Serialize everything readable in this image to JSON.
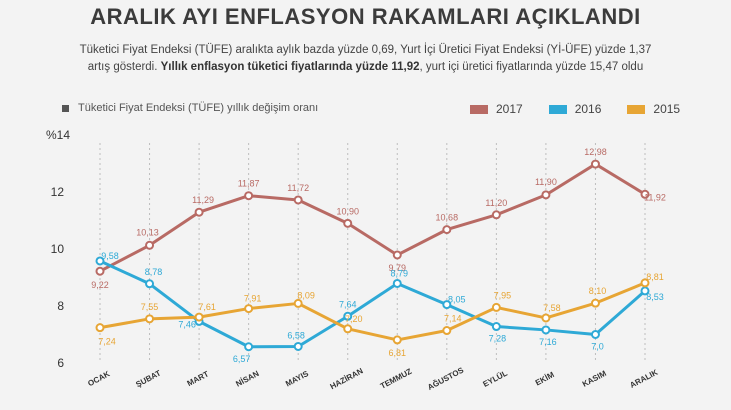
{
  "header": {
    "title": "ARALIK AYI ENFLASYON RAKAMLARI AÇIKLANDI",
    "subtitle_line1": "Tüketici Fiyat Endeksi (TÜFE) aralıkta aylık bazda yüzde 0,69, Yurt İçi Üretici Fiyat Endeksi (Yİ-ÜFE) yüzde 1,37",
    "subtitle_line2_a": "artış gösterdi. ",
    "subtitle_line2_bold": "Yıllık enflasyon tüketici fiyatlarında yüzde 11,92",
    "subtitle_line2_b": ", yurt içi üretici fiyatlarında yüzde 15,47 oldu"
  },
  "chart_data": {
    "type": "line",
    "title": "Tüketici Fiyat Endeksi (TÜFE) yıllık değişim oranı",
    "ylabel": "%14",
    "ylim": [
      6,
      14
    ],
    "yticks": [
      6,
      8,
      10,
      12
    ],
    "grid": false,
    "legend_position": "top-right",
    "categories": [
      "OCAK",
      "ŞUBAT",
      "MART",
      "NİSAN",
      "MAYIS",
      "HAZİRAN",
      "TEMMUZ",
      "AĞUSTOS",
      "EYLÜL",
      "EKİM",
      "KASIM",
      "ARALIK"
    ],
    "series": [
      {
        "name": "2017",
        "color": "#b86a64",
        "values": [
          9.22,
          10.13,
          11.29,
          11.87,
          11.72,
          10.9,
          9.79,
          10.68,
          11.2,
          11.9,
          12.98,
          11.92
        ],
        "labels": [
          "9,22",
          "10,13",
          "11,29",
          "11,87",
          "11,72",
          "10,90",
          "9,79",
          "10,68",
          "11,20",
          "11,90",
          "12,98",
          "11,92"
        ]
      },
      {
        "name": "2016",
        "color": "#2ea9d6",
        "values": [
          9.58,
          8.78,
          7.46,
          6.57,
          6.58,
          7.64,
          8.79,
          8.05,
          7.28,
          7.16,
          7.0,
          8.53
        ],
        "labels": [
          "9,58",
          "8,78",
          "7,46",
          "6,57",
          "6,58",
          "7,64",
          "8,79",
          "8,05",
          "7,28",
          "7,16",
          "7,0",
          "8,53"
        ]
      },
      {
        "name": "2015",
        "color": "#e7a534",
        "values": [
          7.24,
          7.55,
          7.61,
          7.91,
          8.09,
          7.2,
          6.81,
          7.14,
          7.95,
          7.58,
          8.1,
          8.81
        ],
        "labels": [
          "7,24",
          "7,55",
          "7,61",
          "7,91",
          "8,09",
          "7,20",
          "6,81",
          "7,14",
          "7,95",
          "7,58",
          "8,10",
          "8,81"
        ]
      }
    ]
  }
}
